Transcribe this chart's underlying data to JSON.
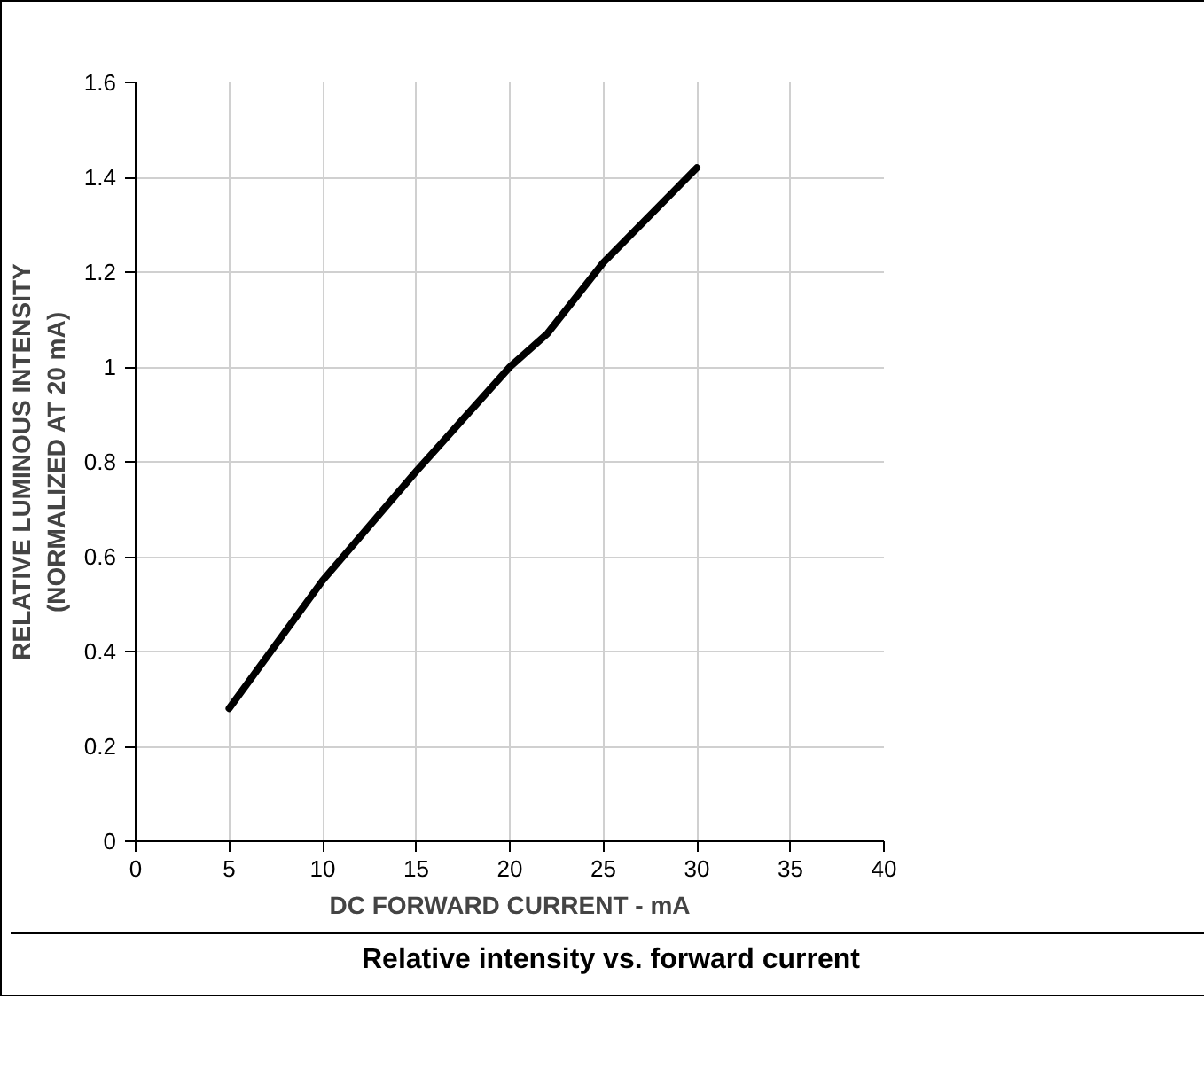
{
  "chart_data": {
    "type": "line",
    "xlabel": "DC FORWARD CURRENT - mA",
    "ylabel": "RELATIVE LUMINOUS INTENSITY\n(NORMALIZED AT 20 mA)",
    "annotations": [
      "Relative intensity vs. forward current"
    ],
    "x": [
      5,
      10,
      15,
      20,
      22,
      25,
      30
    ],
    "series": [
      {
        "color": "#000000",
        "values": [
          0.28,
          0.55,
          0.78,
          1.0,
          1.07,
          1.22,
          1.42
        ]
      }
    ],
    "xlim": [
      0,
      40
    ],
    "xticks": [
      0,
      5,
      10,
      15,
      20,
      25,
      30,
      35,
      40
    ],
    "ylim": [
      0,
      1.6
    ],
    "yticks": [
      0,
      0.2,
      0.4,
      0.6,
      0.8,
      1,
      1.2,
      1.4,
      1.6
    ],
    "grid": true,
    "line_style": "solid"
  }
}
